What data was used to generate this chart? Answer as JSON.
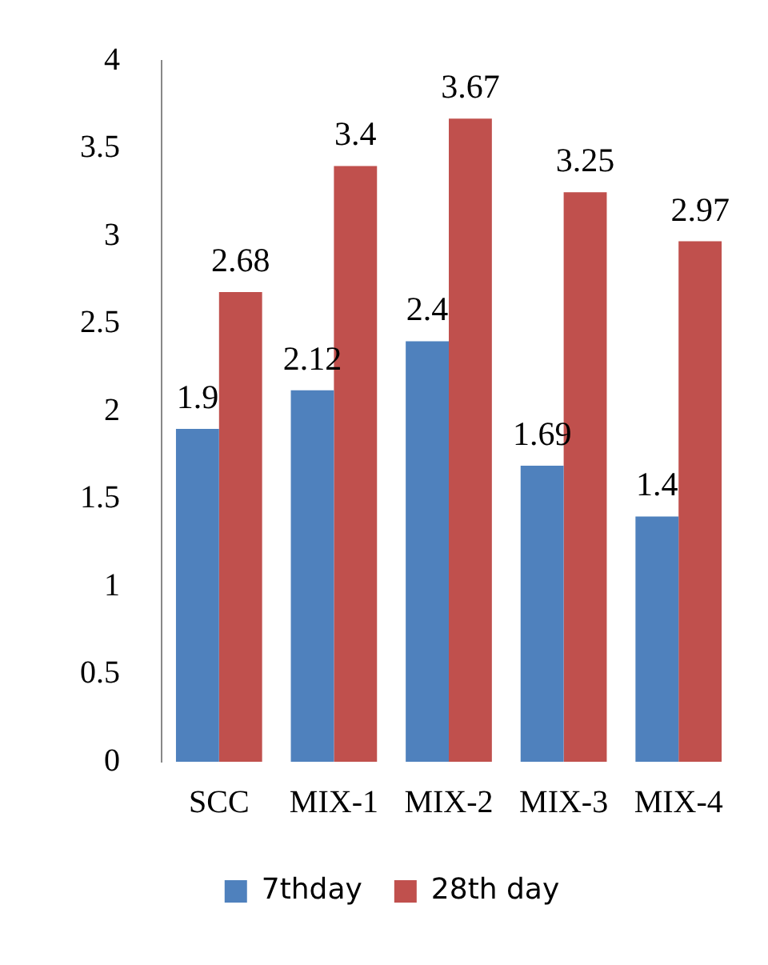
{
  "chart_data": {
    "type": "bar",
    "categories": [
      "SCC",
      "MIX-1",
      "MIX-2",
      "MIX-3",
      "MIX-4"
    ],
    "series": [
      {
        "name": "7thday",
        "color": "#4f81bd",
        "values": [
          1.9,
          2.12,
          2.4,
          1.69,
          1.4
        ]
      },
      {
        "name": "28th day",
        "color": "#c0504d",
        "values": [
          2.68,
          3.4,
          3.67,
          3.25,
          2.97
        ]
      }
    ],
    "ylim": [
      0,
      4
    ],
    "yticks": [
      0,
      0.5,
      1,
      1.5,
      2,
      2.5,
      3,
      3.5,
      4
    ],
    "grid": false,
    "legend": "bottom",
    "data_labels": true
  }
}
